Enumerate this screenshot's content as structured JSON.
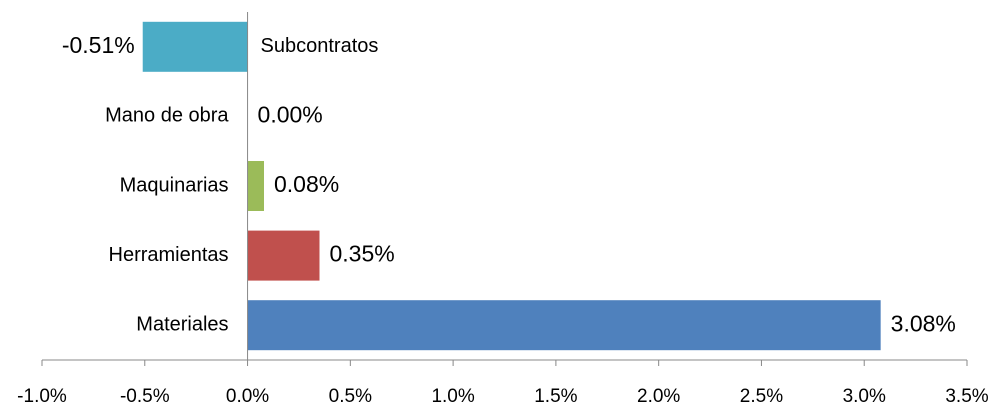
{
  "chart_data": {
    "type": "hbar",
    "categories": [
      "Subcontratos",
      "Mano de obra",
      "Maquinarias",
      "Herramientas",
      "Materiales"
    ],
    "values": [
      -0.51,
      0,
      0.08,
      0.35,
      3.08
    ],
    "value_labels": [
      "-0.51%",
      "0.00%",
      "0.08%",
      "0.35%",
      "3.08%"
    ],
    "colors": [
      "#4bacc6",
      null,
      "#9bbb59",
      "#c0504d",
      "#4f81bd"
    ],
    "xlim": [
      -1.0,
      3.5
    ],
    "xticks": [
      {
        "value": -1.0,
        "label": "-1.0%"
      },
      {
        "value": -0.5,
        "label": "-0.5%"
      },
      {
        "value": 0,
        "label": "0.0%"
      },
      {
        "value": 0.5,
        "label": "0.5%"
      },
      {
        "value": 1.0,
        "label": "1.0%"
      },
      {
        "value": 1.5,
        "label": "1.5%"
      },
      {
        "value": 2.0,
        "label": "2.0%"
      },
      {
        "value": 2.5,
        "label": "2.5%"
      },
      {
        "value": 3.0,
        "label": "3.0%"
      },
      {
        "value": 3.5,
        "label": "3.5%"
      }
    ]
  }
}
